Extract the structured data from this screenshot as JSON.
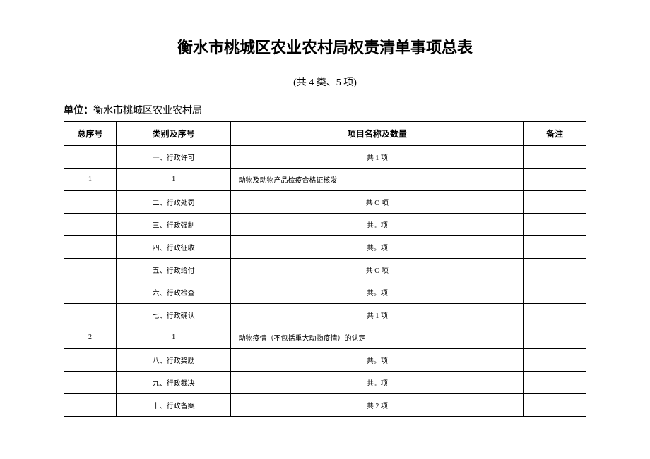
{
  "title": "衡水市桃城区农业农村局权责清单事项总表",
  "subtitle": "(共 4 类、5 项)",
  "unitPrefix": "单位：",
  "unitName": "衡水市桃城区农业农村局",
  "headers": {
    "seq": "总序号",
    "category": "类别及序号",
    "project": "项目名称及数量",
    "remark": "备注"
  },
  "rows": [
    {
      "seq": "",
      "category": "一、行政许可",
      "project": "共 1 项",
      "projectAlign": "center",
      "remark": ""
    },
    {
      "seq": "1",
      "category": "1",
      "project": "动物及动物产品检疫合格证核发",
      "projectAlign": "left",
      "remark": ""
    },
    {
      "seq": "",
      "category": "二、行政处罚",
      "project": "共 O 项",
      "projectAlign": "center",
      "remark": ""
    },
    {
      "seq": "",
      "category": "三、行政强制",
      "project": "共。项",
      "projectAlign": "center",
      "remark": ""
    },
    {
      "seq": "",
      "category": "四、行政征收",
      "project": "共。项",
      "projectAlign": "center",
      "remark": ""
    },
    {
      "seq": "",
      "category": "五、行政给付",
      "project": "共 O 项",
      "projectAlign": "center",
      "remark": ""
    },
    {
      "seq": "",
      "category": "六、行政检查",
      "project": "共。项",
      "projectAlign": "center",
      "remark": ""
    },
    {
      "seq": "",
      "category": "七、行政确认",
      "project": "共 1 项",
      "projectAlign": "center",
      "remark": ""
    },
    {
      "seq": "2",
      "category": "1",
      "project": "动物疫情（不包括重大动物疫情）的认定",
      "projectAlign": "left",
      "remark": ""
    },
    {
      "seq": "",
      "category": "八、行政奖励",
      "project": "共。项",
      "projectAlign": "center",
      "remark": ""
    },
    {
      "seq": "",
      "category": "九、行政裁决",
      "project": "共。项",
      "projectAlign": "center",
      "remark": ""
    },
    {
      "seq": "",
      "category": "十、行政备案",
      "project": "共 2 项",
      "projectAlign": "center",
      "remark": ""
    }
  ]
}
